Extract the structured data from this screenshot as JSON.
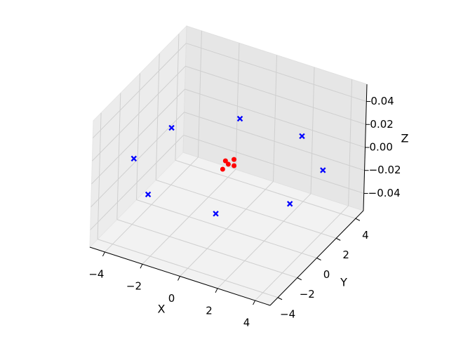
{
  "chart_data": {
    "type": "scatter3d",
    "xlabel": "X",
    "ylabel": "Y",
    "zlabel": "Z",
    "series": [
      {
        "color": "#0000ff",
        "marker": "X",
        "x": [
          1.4,
          4.0,
          4.0,
          1.8,
          -1.4,
          -3.8,
          -4.1,
          -2.1
        ],
        "y": [
          -4.0,
          -1.4,
          2.0,
          4.1,
          3.9,
          1.5,
          -1.8,
          -4.2
        ],
        "z": [
          0,
          0,
          0,
          0,
          0,
          0,
          0,
          0
        ]
      },
      {
        "color": "#ff0000",
        "marker": "o",
        "x": [
          -0.31,
          -0.06,
          -0.02,
          0.23,
          -0.09
        ],
        "y": [
          0.3,
          0.11,
          0.62,
          0.14,
          -0.41
        ],
        "z": [
          0,
          0,
          0,
          0,
          0
        ]
      }
    ],
    "xlim": [
      -4.8,
      4.8
    ],
    "ylim": [
      -4.8,
      4.8
    ],
    "zlim": [
      -0.055,
      0.055
    ],
    "xticks": [
      {
        "value": -4,
        "label": "−4"
      },
      {
        "value": -2,
        "label": "−2"
      },
      0,
      2,
      4
    ],
    "yticks": [
      {
        "value": -4,
        "label": "−4"
      },
      {
        "value": -2,
        "label": "−2"
      },
      0,
      2,
      4
    ],
    "zticks": [
      {
        "value": -0.04,
        "label": "−0.04"
      },
      {
        "value": -0.02,
        "label": "−0.02"
      },
      {
        "value": 0,
        "label": "0.00"
      },
      0.02,
      0.04
    ],
    "grid": true
  }
}
